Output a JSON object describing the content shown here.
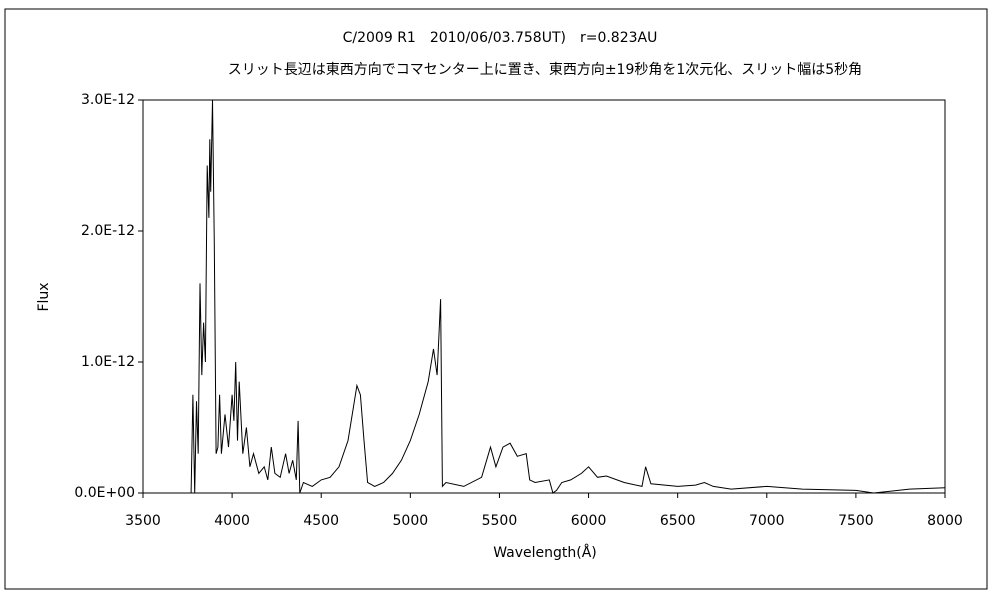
{
  "chart_data": {
    "type": "line",
    "title": "C/2009 R1　2010/06/03.758UT)　r=0.823AU",
    "subtitle": "スリット長辺は東西方向でコマセンター上に置き、東西方向±19秒角を1次元化、スリット幅は5秒角",
    "x_label": "Wavelength(Å)",
    "y_label": "Flux",
    "xlim": [
      3500,
      8000
    ],
    "xticks": [
      3500,
      4000,
      4500,
      5000,
      5500,
      6000,
      6500,
      7000,
      7500,
      8000
    ],
    "ylim": [
      0,
      3e-12
    ],
    "yticks": [
      {
        "value": 0,
        "label": "0.0E+00"
      },
      {
        "value": 1e-12,
        "label": "1.0E-12"
      },
      {
        "value": 2e-12,
        "label": "2.0E-12"
      },
      {
        "value": 3e-12,
        "label": "3.0E-12"
      }
    ],
    "grid": false,
    "series": [
      {
        "color": "#000000",
        "x": [
          3770,
          3780,
          3790,
          3800,
          3810,
          3820,
          3830,
          3840,
          3850,
          3860,
          3870,
          3875,
          3880,
          3890,
          3900,
          3910,
          3920,
          3930,
          3940,
          3960,
          3980,
          4000,
          4010,
          4020,
          4030,
          4040,
          4060,
          4080,
          4100,
          4120,
          4150,
          4180,
          4200,
          4220,
          4240,
          4270,
          4300,
          4320,
          4340,
          4360,
          4370,
          4380,
          4400,
          4450,
          4500,
          4550,
          4600,
          4650,
          4680,
          4700,
          4720,
          4740,
          4760,
          4800,
          4850,
          4900,
          4950,
          5000,
          5050,
          5100,
          5130,
          5150,
          5170,
          5180,
          5200,
          5300,
          5400,
          5450,
          5480,
          5520,
          5560,
          5600,
          5650,
          5670,
          5700,
          5780,
          5800,
          5820,
          5850,
          5900,
          5960,
          6000,
          6050,
          6100,
          6200,
          6300,
          6320,
          6350,
          6500,
          6600,
          6650,
          6700,
          6800,
          7000,
          7200,
          7500,
          7600,
          7800,
          8000
        ],
        "values": [
          0,
          7.5e-13,
          0,
          7e-13,
          3e-13,
          1.6e-12,
          9e-13,
          1.3e-12,
          1e-12,
          2.5e-12,
          2.1e-12,
          2.7e-12,
          2.3e-12,
          3e-12,
          1.9e-12,
          3e-13,
          3.5e-13,
          7.5e-13,
          3e-13,
          6e-13,
          3.5e-13,
          7.5e-13,
          5.5e-13,
          1e-12,
          4e-13,
          8.5e-13,
          3e-13,
          5e-13,
          2e-13,
          3e-13,
          1.5e-13,
          2e-13,
          1e-13,
          3.5e-13,
          1.5e-13,
          1.2e-13,
          3e-13,
          1.5e-13,
          2.5e-13,
          1e-13,
          5.5e-13,
          0,
          8e-14,
          5e-14,
          1e-13,
          1.2e-13,
          2e-13,
          4e-13,
          6.5e-13,
          8.2e-13,
          7.5e-13,
          4e-13,
          8e-14,
          5e-14,
          8e-14,
          1.5e-13,
          2.5e-13,
          4e-13,
          6e-13,
          8.5e-13,
          1.1e-12,
          9e-13,
          1.48e-12,
          5e-14,
          8e-14,
          5e-14,
          1.2e-13,
          3.5e-13,
          2e-13,
          3.5e-13,
          3.8e-13,
          2.8e-13,
          3e-13,
          1e-13,
          8e-14,
          1e-13,
          0,
          2e-14,
          8e-14,
          1e-13,
          1.5e-13,
          2e-13,
          1.2e-13,
          1.3e-13,
          8e-14,
          5e-14,
          2e-13,
          7e-14,
          5e-14,
          6e-14,
          8e-14,
          5e-14,
          3e-14,
          5e-14,
          3e-14,
          2e-14,
          0,
          3e-14,
          4e-14
        ]
      }
    ]
  }
}
